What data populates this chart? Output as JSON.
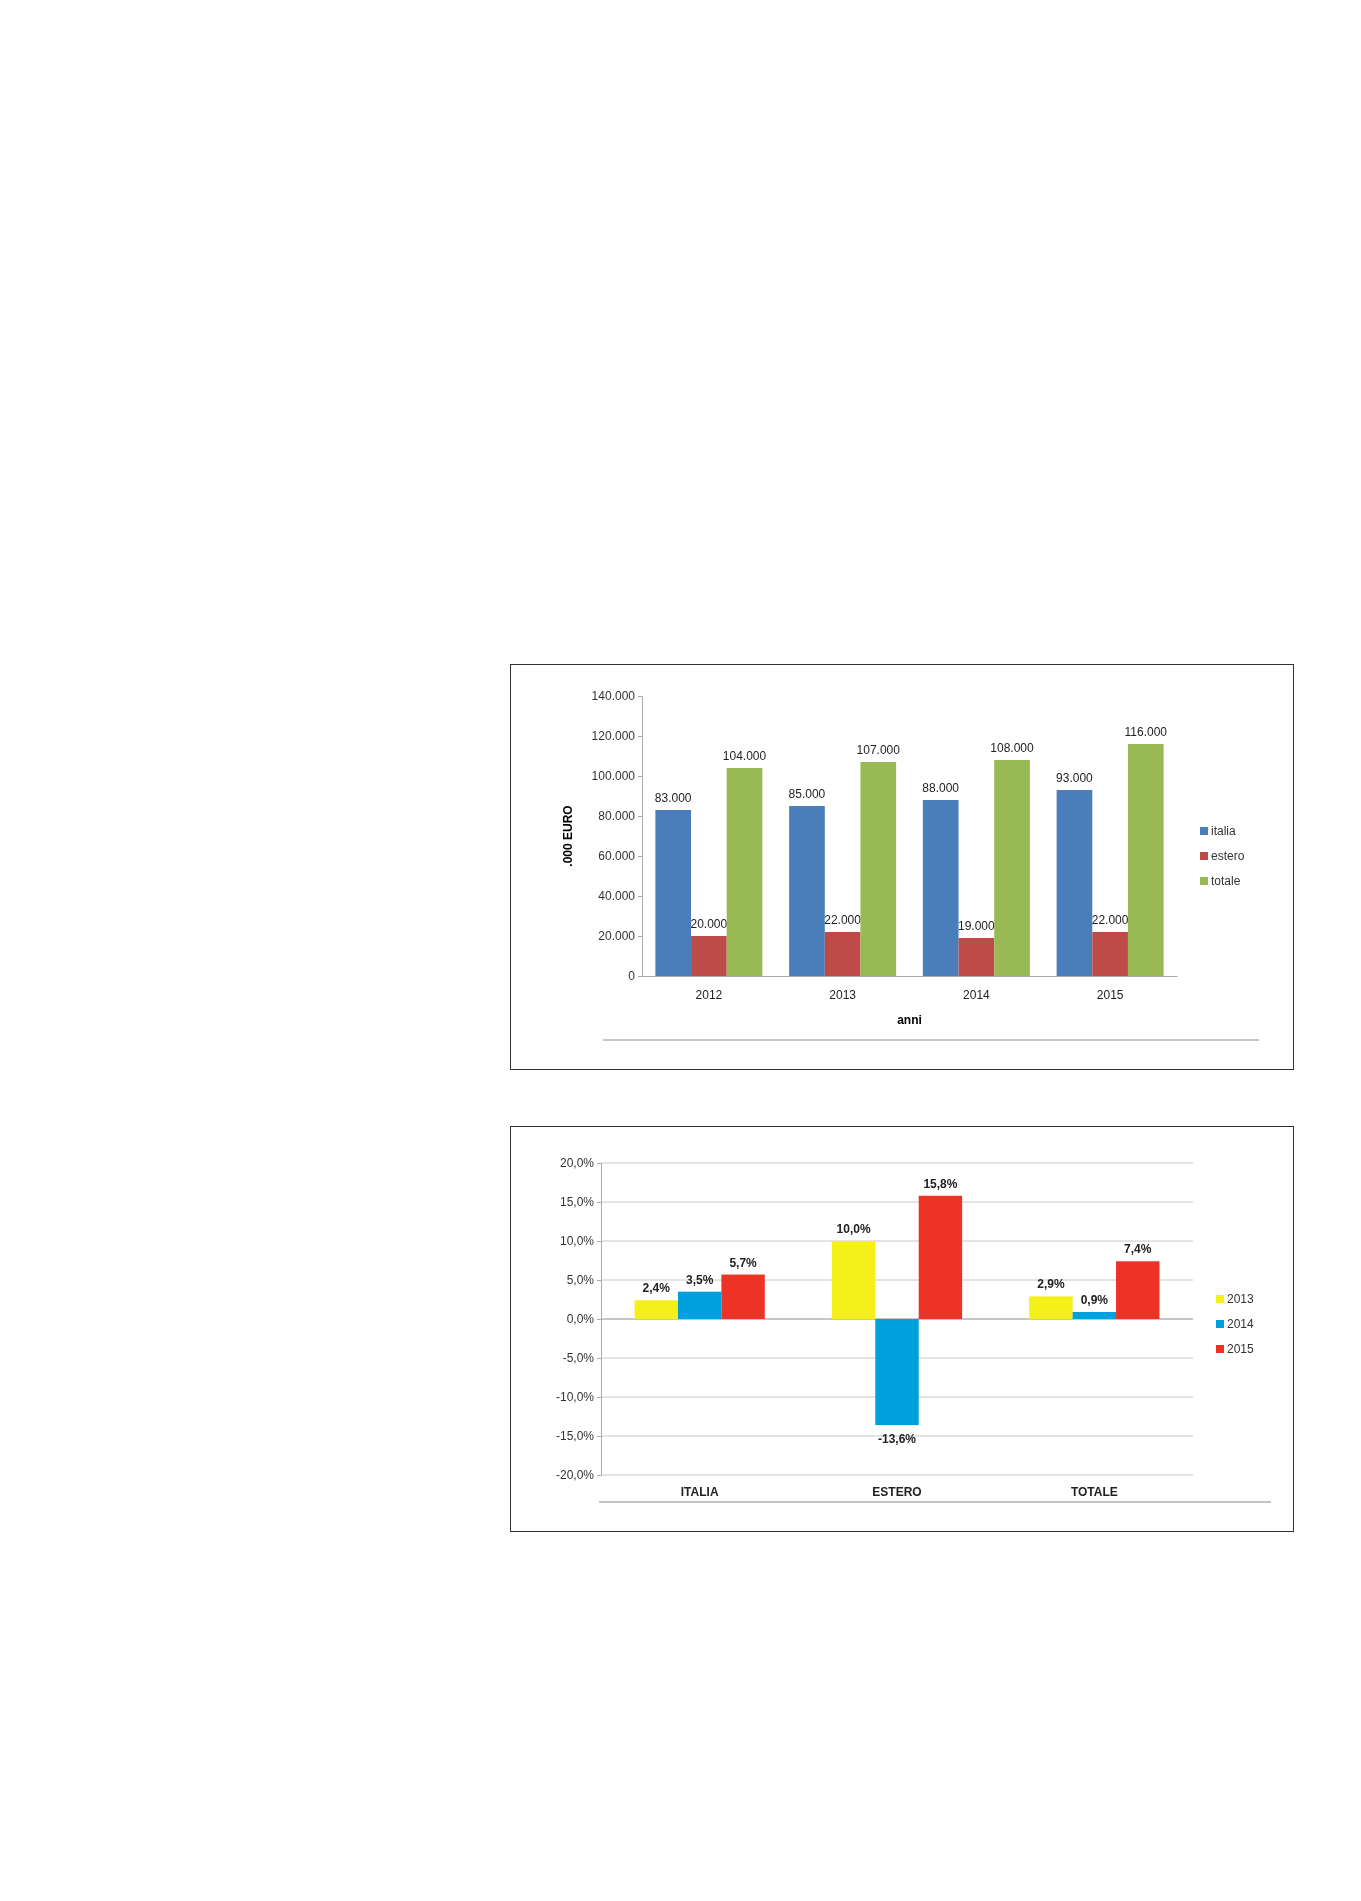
{
  "chart_data": [
    {
      "type": "bar",
      "xlabel": "anni",
      "ylabel": ".000 EURO",
      "categories": [
        "2012",
        "2013",
        "2014",
        "2015"
      ],
      "series": [
        {
          "name": "italia",
          "color": "#4a7ebb",
          "values": [
            83000,
            85000,
            88000,
            93000
          ],
          "value_labels": [
            "83.000",
            "85.000",
            "88.000",
            "93.000"
          ]
        },
        {
          "name": "estero",
          "color": "#be4b48",
          "values": [
            20000,
            22000,
            19000,
            22000
          ],
          "value_labels": [
            "20.000",
            "22.000",
            "19.000",
            "22.000"
          ]
        },
        {
          "name": "totale",
          "color": "#98b954",
          "values": [
            104000,
            107000,
            108000,
            116000
          ],
          "value_labels": [
            "104.000",
            "107.000",
            "108.000",
            "116.000"
          ]
        }
      ],
      "ylim": [
        0,
        140000
      ],
      "yticks": [
        {
          "value": 0,
          "label": "0"
        },
        {
          "value": 20000,
          "label": "20.000"
        },
        {
          "value": 40000,
          "label": "40.000"
        },
        {
          "value": 60000,
          "label": "60.000"
        },
        {
          "value": 80000,
          "label": "80.000"
        },
        {
          "value": 100000,
          "label": "100.000"
        },
        {
          "value": 120000,
          "label": "120.000"
        },
        {
          "value": 140000,
          "label": "140.000"
        }
      ],
      "legend": "right"
    },
    {
      "type": "bar",
      "categories": [
        "ITALIA",
        "ESTERO",
        "TOTALE"
      ],
      "series": [
        {
          "name": "2013",
          "color": "#f5ef1a",
          "values": [
            2.4,
            10.0,
            2.9
          ],
          "value_labels": [
            "2,4%",
            "10,0%",
            "2,9%"
          ]
        },
        {
          "name": "2014",
          "color": "#00a0dc",
          "values": [
            3.5,
            -13.6,
            0.9
          ],
          "value_labels": [
            "3,5%",
            "-13,6%",
            "0,9%"
          ]
        },
        {
          "name": "2015",
          "color": "#ec3326",
          "values": [
            5.7,
            15.8,
            7.4
          ],
          "value_labels": [
            "5,7%",
            "15,8%",
            "7,4%"
          ]
        }
      ],
      "ylim": [
        -20,
        20
      ],
      "yticks": [
        {
          "value": -20,
          "label": "-20,0%"
        },
        {
          "value": -15,
          "label": "-15,0%"
        },
        {
          "value": -10,
          "label": "-10,0%"
        },
        {
          "value": -5,
          "label": "-5,0%"
        },
        {
          "value": 0,
          "label": "0,0%"
        },
        {
          "value": 5,
          "label": "5,0%"
        },
        {
          "value": 10,
          "label": "10,0%"
        },
        {
          "value": 15,
          "label": "15,0%"
        },
        {
          "value": 20,
          "label": "20,0%"
        }
      ],
      "grid": "y",
      "legend": "right"
    }
  ]
}
